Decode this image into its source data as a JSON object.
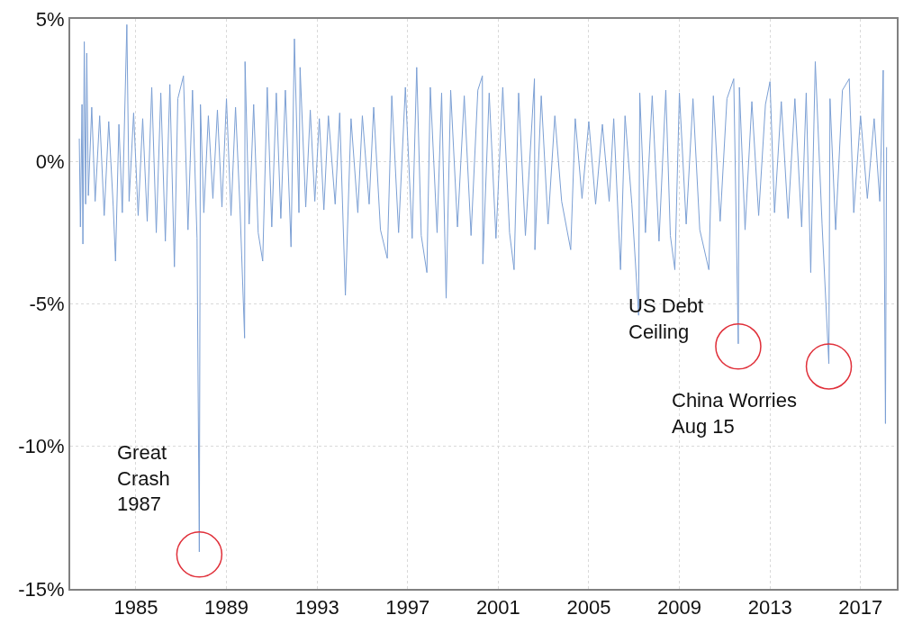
{
  "chart_data": {
    "type": "line",
    "grid": true,
    "marker": "none",
    "line_style": "solid",
    "xlim": [
      1982.1,
      2018.6
    ],
    "xticks": [
      1985,
      1989,
      1993,
      1997,
      2001,
      2005,
      2009,
      2013,
      2017
    ],
    "ylim": [
      -15,
      5
    ],
    "yticks": [
      {
        "value": 5,
        "label": "5%"
      },
      {
        "value": 0,
        "label": "0%"
      },
      {
        "value": -5,
        "label": "-5%"
      },
      {
        "value": -10,
        "label": "-10%"
      },
      {
        "value": -15,
        "label": "-15%"
      }
    ],
    "annotations": [
      {
        "text": "Great\nCrash\n1987",
        "x": 1987.8,
        "y": -13.7
      },
      {
        "text": "US Debt\nCeiling",
        "x": 2011.6,
        "y": -6.4
      },
      {
        "text": "China Worries\nAug 15",
        "x": 2015.6,
        "y": -7.1
      }
    ],
    "series": [
      {
        "color": "#7b9fd4",
        "x": [
          1982.5,
          1982.55,
          1982.62,
          1982.66,
          1982.72,
          1982.78,
          1982.83,
          1982.9,
          1983.05,
          1983.2,
          1983.4,
          1983.6,
          1983.8,
          1984.0,
          1984.1,
          1984.25,
          1984.4,
          1984.6,
          1984.7,
          1984.9,
          1985.1,
          1985.3,
          1985.5,
          1985.7,
          1985.9,
          1986.1,
          1986.3,
          1986.5,
          1986.7,
          1986.85,
          1987.1,
          1987.3,
          1987.5,
          1987.7,
          1987.8,
          1987.85,
          1988.0,
          1988.2,
          1988.4,
          1988.6,
          1988.8,
          1989.0,
          1989.2,
          1989.4,
          1989.6,
          1989.8,
          1989.82,
          1990.0,
          1990.2,
          1990.4,
          1990.6,
          1990.8,
          1991.0,
          1991.2,
          1991.4,
          1991.6,
          1991.85,
          1992.0,
          1992.2,
          1992.25,
          1992.5,
          1992.7,
          1992.9,
          1993.1,
          1993.3,
          1993.5,
          1993.8,
          1994.0,
          1994.25,
          1994.5,
          1994.8,
          1995.0,
          1995.3,
          1995.5,
          1995.8,
          1996.1,
          1996.3,
          1996.6,
          1996.9,
          1997.2,
          1997.4,
          1997.6,
          1997.85,
          1998.0,
          1998.3,
          1998.5,
          1998.7,
          1998.9,
          1999.2,
          1999.5,
          1999.8,
          2000.1,
          2000.3,
          2000.32,
          2000.6,
          2000.9,
          2001.2,
          2001.5,
          2001.7,
          2001.9,
          2002.2,
          2002.6,
          2002.62,
          2002.9,
          2003.2,
          2003.5,
          2003.8,
          2004.2,
          2004.4,
          2004.7,
          2005.0,
          2005.3,
          2005.6,
          2005.9,
          2006.1,
          2006.4,
          2006.6,
          2006.9,
          2007.2,
          2007.25,
          2007.5,
          2007.8,
          2008.1,
          2008.4,
          2008.6,
          2008.8,
          2009.0,
          2009.3,
          2009.6,
          2009.9,
          2010.3,
          2010.5,
          2010.8,
          2011.1,
          2011.4,
          2011.6,
          2011.65,
          2011.9,
          2012.2,
          2012.5,
          2012.8,
          2013.0,
          2013.2,
          2013.5,
          2013.8,
          2014.1,
          2014.4,
          2014.6,
          2014.8,
          2015.0,
          2015.3,
          2015.6,
          2015.65,
          2015.9,
          2016.2,
          2016.5,
          2016.7,
          2017.0,
          2017.3,
          2017.6,
          2017.85,
          2018.0,
          2018.1,
          2018.15
        ],
        "values": [
          0.8,
          -2.3,
          2.0,
          -2.9,
          4.2,
          -1.5,
          3.8,
          -1.2,
          1.9,
          -1.4,
          1.6,
          -1.9,
          1.4,
          -1.6,
          -3.5,
          1.3,
          -1.8,
          4.8,
          -1.4,
          1.7,
          -1.9,
          1.5,
          -2.1,
          2.6,
          -2.5,
          2.4,
          -2.8,
          2.7,
          -3.7,
          2.2,
          3.0,
          -2.4,
          2.5,
          -2.7,
          -13.7,
          2.0,
          -1.8,
          1.6,
          -1.3,
          1.8,
          -1.6,
          2.2,
          -1.9,
          1.9,
          -1.7,
          -6.2,
          3.5,
          -2.2,
          2.0,
          -2.5,
          -3.5,
          2.6,
          -2.3,
          2.4,
          -2.0,
          2.5,
          -3.0,
          4.3,
          -1.8,
          3.3,
          -1.6,
          1.8,
          -1.4,
          1.5,
          -1.7,
          1.6,
          -1.5,
          1.7,
          -4.7,
          1.5,
          -1.8,
          1.6,
          -1.5,
          1.9,
          -2.4,
          -3.4,
          2.3,
          -2.5,
          2.6,
          -2.7,
          3.3,
          -2.6,
          -3.9,
          2.6,
          -2.5,
          2.4,
          -4.8,
          2.5,
          -2.3,
          2.3,
          -2.6,
          2.5,
          3.0,
          -3.6,
          2.4,
          -2.7,
          2.6,
          -2.5,
          -3.8,
          2.4,
          -2.6,
          2.9,
          -3.1,
          2.3,
          -2.2,
          1.6,
          -1.4,
          -3.1,
          1.5,
          -1.3,
          1.4,
          -1.5,
          1.3,
          -1.4,
          1.5,
          -3.8,
          1.6,
          -1.5,
          -5.4,
          2.4,
          -2.5,
          2.3,
          -2.8,
          2.5,
          -2.6,
          -3.8,
          2.4,
          -2.2,
          2.2,
          -2.4,
          -3.8,
          2.3,
          -2.1,
          2.2,
          2.9,
          -6.4,
          2.6,
          -2.4,
          2.1,
          -1.9,
          2.0,
          2.8,
          -1.8,
          2.1,
          -2.0,
          2.2,
          -2.3,
          2.4,
          -3.9,
          3.5,
          -2.2,
          -7.1,
          2.2,
          -2.4,
          2.5,
          2.9,
          -1.8,
          1.6,
          -1.3,
          1.5,
          -1.4,
          3.2,
          -9.2,
          0.5
        ]
      }
    ]
  }
}
